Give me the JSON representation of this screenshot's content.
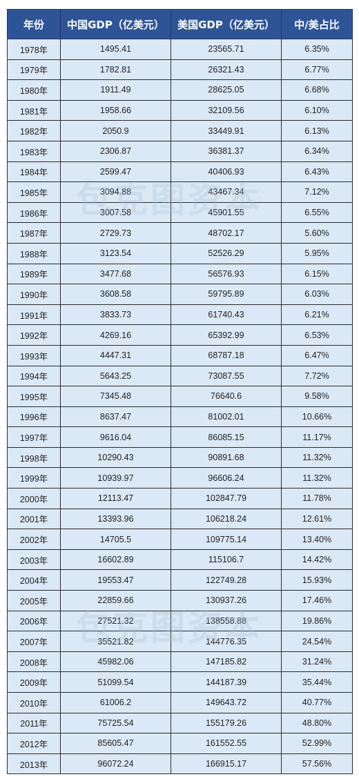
{
  "chart_data": {
    "type": "table",
    "columns": [
      "年份",
      "中国GDP（亿美元）",
      "美国GDP（亿美元）",
      "中/美占比"
    ],
    "rows": [
      [
        "1978年",
        "1495.41",
        "23565.71",
        "6.35%"
      ],
      [
        "1979年",
        "1782.81",
        "26321.43",
        "6.77%"
      ],
      [
        "1980年",
        "1911.49",
        "28625.05",
        "6.68%"
      ],
      [
        "1981年",
        "1958.66",
        "32109.56",
        "6.10%"
      ],
      [
        "1982年",
        "2050.9",
        "33449.91",
        "6.13%"
      ],
      [
        "1983年",
        "2306.87",
        "36381.37",
        "6.34%"
      ],
      [
        "1984年",
        "2599.47",
        "40406.93",
        "6.43%"
      ],
      [
        "1985年",
        "3094.88",
        "43467.34",
        "7.12%"
      ],
      [
        "1986年",
        "3007.58",
        "45901.55",
        "6.55%"
      ],
      [
        "1987年",
        "2729.73",
        "48702.17",
        "5.60%"
      ],
      [
        "1988年",
        "3123.54",
        "52526.29",
        "5.95%"
      ],
      [
        "1989年",
        "3477.68",
        "56576.93",
        "6.15%"
      ],
      [
        "1990年",
        "3608.58",
        "59795.89",
        "6.03%"
      ],
      [
        "1991年",
        "3833.73",
        "61740.43",
        "6.21%"
      ],
      [
        "1992年",
        "4269.16",
        "65392.99",
        "6.53%"
      ],
      [
        "1993年",
        "4447.31",
        "68787.18",
        "6.47%"
      ],
      [
        "1994年",
        "5643.25",
        "73087.55",
        "7.72%"
      ],
      [
        "1995年",
        "7345.48",
        "76640.6",
        "9.58%"
      ],
      [
        "1996年",
        "8637.47",
        "81002.01",
        "10.66%"
      ],
      [
        "1997年",
        "9616.04",
        "86085.15",
        "11.17%"
      ],
      [
        "1998年",
        "10290.43",
        "90891.68",
        "11.32%"
      ],
      [
        "1999年",
        "10939.97",
        "96606.24",
        "11.32%"
      ],
      [
        "2000年",
        "12113.47",
        "102847.79",
        "11.78%"
      ],
      [
        "2001年",
        "13393.96",
        "106218.24",
        "12.61%"
      ],
      [
        "2002年",
        "14705.5",
        "109775.14",
        "13.40%"
      ],
      [
        "2003年",
        "16602.89",
        "115106.7",
        "14.42%"
      ],
      [
        "2004年",
        "19553.47",
        "122749.28",
        "15.93%"
      ],
      [
        "2005年",
        "22859.66",
        "130937.26",
        "17.46%"
      ],
      [
        "2006年",
        "27521.32",
        "138558.88",
        "19.86%"
      ],
      [
        "2007年",
        "35521.82",
        "144776.35",
        "24.54%"
      ],
      [
        "2008年",
        "45982.06",
        "147185.82",
        "31.24%"
      ],
      [
        "2009年",
        "51099.54",
        "144187.39",
        "35.44%"
      ],
      [
        "2010年",
        "61006.2",
        "149643.72",
        "40.77%"
      ],
      [
        "2011年",
        "75725.54",
        "155179.26",
        "48.80%"
      ],
      [
        "2012年",
        "85605.47",
        "161552.55",
        "52.99%"
      ],
      [
        "2013年",
        "96072.24",
        "166915.17",
        "57.56%"
      ]
    ]
  },
  "watermark": "包克图资本",
  "colors": {
    "header_bg": "#2f5496",
    "header_text": "#ffffff",
    "cell_bg": "#dbe8f5",
    "border": "#2a2a2a"
  }
}
